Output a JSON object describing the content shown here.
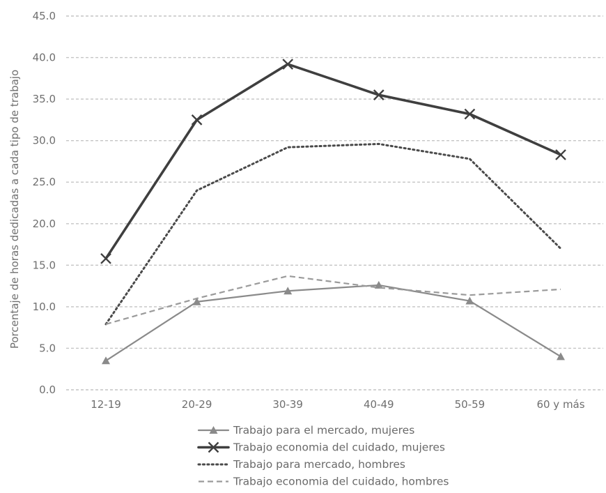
{
  "chart_data": {
    "type": "line",
    "ylabel": "Porcentaje de horas dedicadas a cada tipo de trabajo",
    "xlabel": "",
    "categories": [
      "12-19",
      "20-29",
      "30-39",
      "40-49",
      "50-59",
      "60 y más"
    ],
    "ylim": [
      0,
      45
    ],
    "yticks": [
      "0.0",
      "5.0",
      "10.0",
      "15.0",
      "20.0",
      "25.0",
      "30.0",
      "35.0",
      "40.0",
      "45.0"
    ],
    "grid": true,
    "legend_position": "bottom",
    "series": [
      {
        "name": "Trabajo para el mercado, mujeres",
        "values": [
          3.5,
          10.6,
          11.9,
          12.6,
          10.7,
          4.0
        ],
        "color": "#8a8a8a",
        "line_style": "solid",
        "marker": "triangle"
      },
      {
        "name": "Trabajo economia del cuidado, mujeres",
        "values": [
          15.8,
          32.5,
          39.2,
          35.5,
          33.2,
          28.3
        ],
        "color": "#3f3f3f",
        "line_style": "solid",
        "marker": "x"
      },
      {
        "name": "Trabajo para mercado, hombres",
        "values": [
          7.9,
          24.0,
          29.2,
          29.6,
          27.8,
          17.0
        ],
        "color": "#4a4a4a",
        "line_style": "dotted",
        "marker": "none"
      },
      {
        "name": "Trabajo economia del cuidado, hombres",
        "values": [
          7.9,
          11.0,
          13.7,
          12.3,
          11.4,
          12.1
        ],
        "color": "#9a9a9a",
        "line_style": "dashed",
        "marker": "none"
      }
    ]
  }
}
